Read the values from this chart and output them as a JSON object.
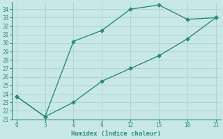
{
  "xlabel": "Humidex (Indice chaleur)",
  "line1_x": [
    0,
    3,
    6,
    9,
    12,
    15,
    18,
    21
  ],
  "line1_y": [
    23.7,
    21.3,
    30.2,
    31.5,
    34.0,
    34.5,
    32.8,
    33.0
  ],
  "line2_x": [
    0,
    3,
    6,
    9,
    12,
    15,
    18,
    21
  ],
  "line2_y": [
    23.7,
    21.3,
    23.0,
    25.5,
    27.0,
    28.5,
    30.5,
    33.0
  ],
  "line_color": "#2e8b7a",
  "bg_color": "#c8e8e8",
  "grid_color": "#b0d0d0",
  "xlim": [
    -0.5,
    21.5
  ],
  "ylim": [
    21,
    34.8
  ],
  "xticks": [
    0,
    3,
    6,
    9,
    12,
    15,
    18,
    21
  ],
  "yticks": [
    21,
    22,
    23,
    24,
    25,
    26,
    27,
    28,
    29,
    30,
    31,
    32,
    33,
    34
  ],
  "marker": "D",
  "marker_size": 2.5,
  "line_width": 1.0
}
